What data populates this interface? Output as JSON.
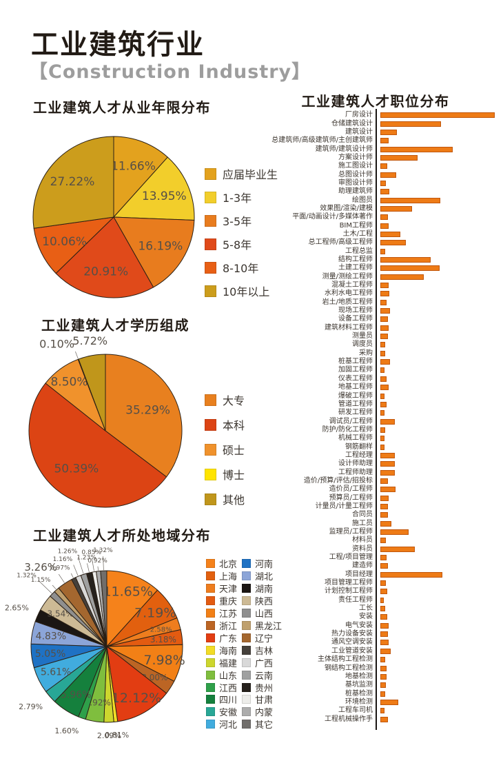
{
  "header": {
    "title": "工业建筑行业",
    "subtitle": "【Construction Industry】"
  },
  "colors": {
    "title_text": "#221B15",
    "subtitle_text": "#9D9D9D",
    "bar_fill": "#EE7B16",
    "bar_border": "#C0560C",
    "axis_line": "#191512",
    "pie_label_text": "#564F47",
    "pie_stroke": "#2B2015"
  },
  "chart_data": [
    {
      "id": "experience_pie",
      "type": "pie",
      "title": "工业建筑人才从业年限分布",
      "legend_position": "right",
      "start_angle_deg": 0,
      "direction": "clockwise",
      "slices": [
        {
          "label": "应届毕业生",
          "value": 11.66,
          "color": "#E3A21E",
          "label_inside": true
        },
        {
          "label": "1-3年",
          "value": 13.95,
          "color": "#F2CE2B",
          "label_inside": true
        },
        {
          "label": "3-5年",
          "value": 16.19,
          "color": "#E87C1E",
          "label_inside": true
        },
        {
          "label": "5-8年",
          "value": 20.91,
          "color": "#E04A1A",
          "label_inside": true
        },
        {
          "label": "8-10年",
          "value": 10.06,
          "color": "#E85F15",
          "label_inside": true
        },
        {
          "label": "10年以上",
          "value": 27.22,
          "color": "#CC9D1C",
          "label_inside": true
        }
      ]
    },
    {
      "id": "education_pie",
      "type": "pie",
      "title": "工业建筑人才学历组成",
      "legend_position": "right",
      "start_angle_deg": 0,
      "direction": "clockwise",
      "slices": [
        {
          "label": "大专",
          "value": 35.29,
          "color": "#E8801F",
          "label_inside": true
        },
        {
          "label": "本科",
          "value": 50.39,
          "color": "#DC4414",
          "label_inside": true
        },
        {
          "label": "硕士",
          "value": 8.5,
          "color": "#F0922C",
          "label_inside": true
        },
        {
          "label": "博士",
          "value": 0.1,
          "color": "#FFE400",
          "label_inside": false
        },
        {
          "label": "其他",
          "value": 5.72,
          "color": "#C0961B",
          "label_inside": false
        }
      ]
    },
    {
      "id": "region_pie",
      "type": "pie",
      "title": "工业建筑人才所处地域分布",
      "legend_position": "right-two-columns",
      "start_angle_deg": 0,
      "direction": "clockwise",
      "slices": [
        {
          "label": "北京",
          "value": 11.65,
          "color": "#F5821B",
          "label_inside": true
        },
        {
          "label": "上海",
          "value": 7.19,
          "color": "#E2600F",
          "label_inside": true
        },
        {
          "label": "天津",
          "value": 2.58,
          "color": "#EE7D1E",
          "label_inside": true
        },
        {
          "label": "重庆",
          "value": 3.18,
          "color": "#E35B11",
          "label_inside": true
        },
        {
          "label": "江苏",
          "value": 7.98,
          "color": "#F28016",
          "label_inside": true
        },
        {
          "label": "浙江",
          "value": 3.0,
          "color": "#BC6524",
          "label_inside": true
        },
        {
          "label": "广东",
          "value": 12.12,
          "color": "#E23D12",
          "label_inside": true
        },
        {
          "label": "海南",
          "value": 0.81,
          "color": "#F2DC26",
          "label_inside": false
        },
        {
          "label": "福建",
          "value": 2.09,
          "color": "#CDD62E",
          "label_inside": false
        },
        {
          "label": "山东",
          "value": 3.92,
          "color": "#7FBE3E",
          "label_inside": true
        },
        {
          "label": "江西",
          "value": 1.6,
          "color": "#2FA04A",
          "label_inside": false
        },
        {
          "label": "四川",
          "value": 5.96,
          "color": "#15803D",
          "label_inside": true
        },
        {
          "label": "安徽",
          "value": 2.79,
          "color": "#28A796",
          "label_inside": false
        },
        {
          "label": "河北",
          "value": 5.61,
          "color": "#41ACDE",
          "label_inside": true
        },
        {
          "label": "河南",
          "value": 5.05,
          "color": "#1F72C4",
          "label_inside": true
        },
        {
          "label": "湖北",
          "value": 4.83,
          "color": "#8CA5D8",
          "label_inside": true
        },
        {
          "label": "湖南",
          "value": 2.65,
          "color": "#1B1613",
          "label_inside": false
        },
        {
          "label": "陕西",
          "value": 3.54,
          "color": "#CDBA95",
          "label_inside": true
        },
        {
          "label": "山西",
          "value": 1.32,
          "color": "#8F8F8F",
          "label_inside": false
        },
        {
          "label": "黑龙江",
          "value": 1.15,
          "color": "#BFA06E",
          "label_inside": false
        },
        {
          "label": "辽宁",
          "value": 3.26,
          "color": "#A4672F",
          "label_inside": false
        },
        {
          "label": "吉林",
          "value": 0.97,
          "color": "#45403B",
          "label_inside": false
        },
        {
          "label": "广西",
          "value": 1.16,
          "color": "#D9D9D9",
          "label_inside": false
        },
        {
          "label": "云南",
          "value": 1.26,
          "color": "#9FA0A0",
          "label_inside": false
        },
        {
          "label": "贵州",
          "value": 1.23,
          "color": "#26211C",
          "label_inside": false
        },
        {
          "label": "甘肃",
          "value": 0.85,
          "color": "#EDEDEA",
          "label_inside": false
        },
        {
          "label": "内蒙",
          "value": 0.92,
          "color": "#ACACAC",
          "label_inside": false
        },
        {
          "label": "其它",
          "value": 1.32,
          "color": "#716E6B",
          "label_inside": false
        }
      ]
    },
    {
      "id": "position_bar",
      "type": "bar",
      "title": "工业建筑人才职位分布",
      "orientation": "horizontal",
      "value_unit": "relative-length-px",
      "max_value": 166,
      "items": [
        {
          "label": "厂房设计",
          "value": 166
        },
        {
          "label": "仓储建筑设计",
          "value": 88
        },
        {
          "label": "建筑设计",
          "value": 24
        },
        {
          "label": "总建筑师/高级建筑师/主创建筑师",
          "value": 12
        },
        {
          "label": "建筑师/建筑设计师",
          "value": 105
        },
        {
          "label": "方案设计师",
          "value": 54
        },
        {
          "label": "施工图设计",
          "value": 10
        },
        {
          "label": "总图设计师",
          "value": 23
        },
        {
          "label": "审图设计师",
          "value": 8
        },
        {
          "label": "助理建筑师",
          "value": 13
        },
        {
          "label": "绘图员",
          "value": 87
        },
        {
          "label": "效果图/渲染/建模",
          "value": 46
        },
        {
          "label": "平面/动画设计/多媒体著作",
          "value": 11
        },
        {
          "label": "BIM工程师",
          "value": 12
        },
        {
          "label": "土木/工程",
          "value": 29
        },
        {
          "label": "总工程师/高级工程师",
          "value": 37
        },
        {
          "label": "工程总监",
          "value": 7
        },
        {
          "label": "结构工程师",
          "value": 73
        },
        {
          "label": "土建工程师",
          "value": 86
        },
        {
          "label": "测量/测绘工程师",
          "value": 63
        },
        {
          "label": "混凝土工程师",
          "value": 12
        },
        {
          "label": "水利水电工程师",
          "value": 13
        },
        {
          "label": "岩土/地质工程师",
          "value": 9
        },
        {
          "label": "现场工程师",
          "value": 14
        },
        {
          "label": "设备工程师",
          "value": 11
        },
        {
          "label": "建筑材料工程师",
          "value": 12
        },
        {
          "label": "测量员",
          "value": 11
        },
        {
          "label": "调度员",
          "value": 7
        },
        {
          "label": "采购",
          "value": 7
        },
        {
          "label": "桩基工程师",
          "value": 14
        },
        {
          "label": "加固工程师",
          "value": 6
        },
        {
          "label": "仪表工程师",
          "value": 9
        },
        {
          "label": "地基工程师",
          "value": 12
        },
        {
          "label": "爆破工程师",
          "value": 6
        },
        {
          "label": "管道工程师",
          "value": 9
        },
        {
          "label": "研发工程师",
          "value": 6
        },
        {
          "label": "调试员/工程师",
          "value": 21
        },
        {
          "label": "防护/防化工程师",
          "value": 7
        },
        {
          "label": "机械工程师",
          "value": 6
        },
        {
          "label": "钢筋翻样",
          "value": 6
        },
        {
          "label": "工程经理",
          "value": 21
        },
        {
          "label": "设计师助理",
          "value": 21
        },
        {
          "label": "工程师助理",
          "value": 21
        },
        {
          "label": "造价/预算/评估/招投标",
          "value": 11
        },
        {
          "label": "造价员/工程师",
          "value": 22
        },
        {
          "label": "预算员/工程师",
          "value": 12
        },
        {
          "label": "计量员/计量工程师",
          "value": 11
        },
        {
          "label": "合同员",
          "value": 11
        },
        {
          "label": "施工员",
          "value": 16
        },
        {
          "label": "监理员/工程师",
          "value": 41
        },
        {
          "label": "材料员",
          "value": 8
        },
        {
          "label": "资料员",
          "value": 50
        },
        {
          "label": "工程/项目管理",
          "value": 9
        },
        {
          "label": "建造师",
          "value": 11
        },
        {
          "label": "项目经理",
          "value": 90
        },
        {
          "label": "项目管理工程师",
          "value": 8
        },
        {
          "label": "计划控制工程师",
          "value": 10
        },
        {
          "label": "责任工程师",
          "value": 5
        },
        {
          "label": "工长",
          "value": 7
        },
        {
          "label": "安装",
          "value": 10
        },
        {
          "label": "电气安装",
          "value": 12
        },
        {
          "label": "热力设备安装",
          "value": 11
        },
        {
          "label": "通风空调安装",
          "value": 12
        },
        {
          "label": "工业管道安装",
          "value": 15
        },
        {
          "label": "主体结构工程检测",
          "value": 7
        },
        {
          "label": "钢结构工程检测",
          "value": 9
        },
        {
          "label": "地基检测",
          "value": 9
        },
        {
          "label": "基坑监测",
          "value": 8
        },
        {
          "label": "桩基检测",
          "value": 7
        },
        {
          "label": "环境检测",
          "value": 26
        },
        {
          "label": "工程车司机",
          "value": 6
        },
        {
          "label": "工程机械操作手",
          "value": 11
        }
      ]
    }
  ]
}
